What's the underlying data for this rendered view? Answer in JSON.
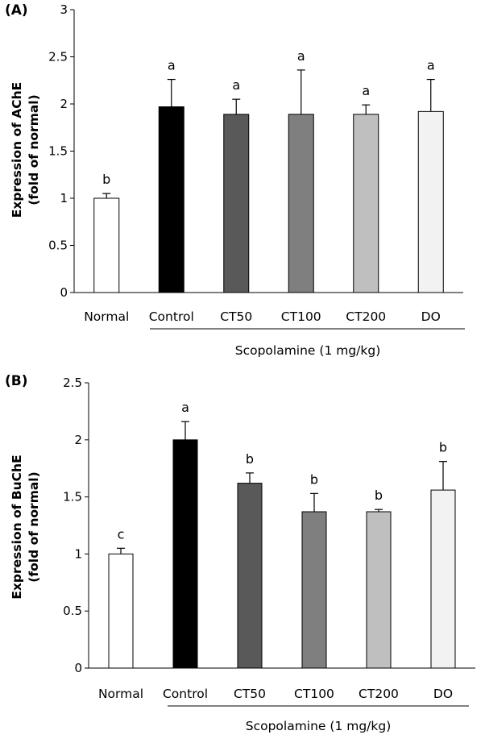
{
  "chart_data": [
    {
      "type": "bar",
      "panel_label": "(A)",
      "ylabel": [
        "Expression of AChE",
        "(fold of normal)"
      ],
      "categories": [
        "Normal",
        "Control",
        "CT50",
        "CT100",
        "CT200",
        "DO"
      ],
      "values": [
        1.0,
        1.97,
        1.89,
        1.89,
        1.89,
        1.92
      ],
      "errors": [
        0.05,
        0.29,
        0.16,
        0.47,
        0.1,
        0.34
      ],
      "significance_letters": [
        "b",
        "a",
        "a",
        "a",
        "a",
        "a"
      ],
      "bar_colors": [
        "#ffffff",
        "#000000",
        "#595959",
        "#7f7f7f",
        "#bfbfbf",
        "#f2f2f2"
      ],
      "ylim": [
        0,
        3
      ],
      "yticks": [
        "0",
        "0.5",
        "1",
        "1.5",
        "2",
        "2.5",
        "3"
      ],
      "ytick_values": [
        0,
        0.5,
        1,
        1.5,
        2,
        2.5,
        3
      ],
      "group_label": "Scopolamine (1 mg/kg)",
      "grid": false
    },
    {
      "type": "bar",
      "panel_label": "(B)",
      "ylabel": [
        "Expression of BuChE",
        "(fold of normal)"
      ],
      "categories": [
        "Normal",
        "Control",
        "CT50",
        "CT100",
        "CT200",
        "DO"
      ],
      "values": [
        1.0,
        2.0,
        1.62,
        1.37,
        1.37,
        1.56
      ],
      "errors": [
        0.05,
        0.16,
        0.09,
        0.16,
        0.02,
        0.25
      ],
      "significance_letters": [
        "c",
        "a",
        "b",
        "b",
        "b",
        "b"
      ],
      "bar_colors": [
        "#ffffff",
        "#000000",
        "#595959",
        "#7f7f7f",
        "#bfbfbf",
        "#f2f2f2"
      ],
      "ylim": [
        0,
        2.5
      ],
      "yticks": [
        "0",
        "0.5",
        "1",
        "1.5",
        "2",
        "2.5"
      ],
      "ytick_values": [
        0,
        0.5,
        1,
        1.5,
        2,
        2.5
      ],
      "group_label": "Scopolamine (1 mg/kg)",
      "grid": false
    }
  ]
}
